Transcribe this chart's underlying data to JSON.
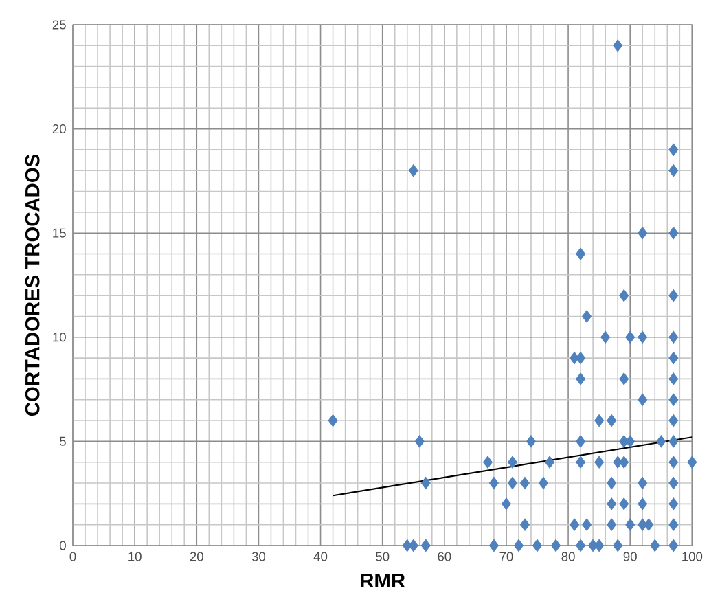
{
  "chart_data": {
    "type": "scatter",
    "xlabel": "RMR",
    "ylabel": "CORTADORES TROCADOS",
    "xlim": [
      0,
      100
    ],
    "ylim": [
      0,
      25
    ],
    "xticks": [
      0,
      10,
      20,
      30,
      40,
      50,
      60,
      70,
      80,
      90,
      100
    ],
    "yticks": [
      0,
      5,
      10,
      15,
      20,
      25
    ],
    "grid": true,
    "marker": "diamond",
    "series": [
      {
        "color": "#4f81bd",
        "x": [
          42,
          55,
          88,
          97,
          97,
          92,
          97,
          82,
          89,
          97,
          83,
          86,
          90,
          92,
          97,
          81,
          82,
          97,
          82,
          89,
          97,
          92,
          97,
          85,
          87,
          97,
          56,
          74,
          82,
          89,
          90,
          95,
          97,
          67,
          71,
          77,
          82,
          85,
          88,
          89,
          97,
          100,
          57,
          68,
          71,
          73,
          76,
          87,
          92,
          97,
          70,
          87,
          89,
          92,
          97,
          73,
          81,
          83,
          87,
          90,
          92,
          93,
          97,
          54,
          55,
          57,
          68,
          72,
          75,
          78,
          82,
          84,
          85,
          88,
          94,
          97
        ],
        "values": [
          6,
          18,
          24,
          19,
          18,
          15,
          15,
          14,
          12,
          12,
          11,
          10,
          10,
          10,
          10,
          9,
          9,
          9,
          8,
          8,
          8,
          7,
          7,
          6,
          6,
          6,
          5,
          5,
          5,
          5,
          5,
          5,
          5,
          4,
          4,
          4,
          4,
          4,
          4,
          4,
          4,
          4,
          3,
          3,
          3,
          3,
          3,
          3,
          3,
          3,
          2,
          2,
          2,
          2,
          2,
          1,
          1,
          1,
          1,
          1,
          1,
          1,
          1,
          0,
          0,
          0,
          0,
          0,
          0,
          0,
          0,
          0,
          0,
          0,
          0,
          0
        ]
      },
      {
        "type": "line",
        "color": "#000000",
        "marker": "none",
        "x": [
          42,
          100
        ],
        "values": [
          2.4,
          5.2
        ]
      }
    ]
  }
}
